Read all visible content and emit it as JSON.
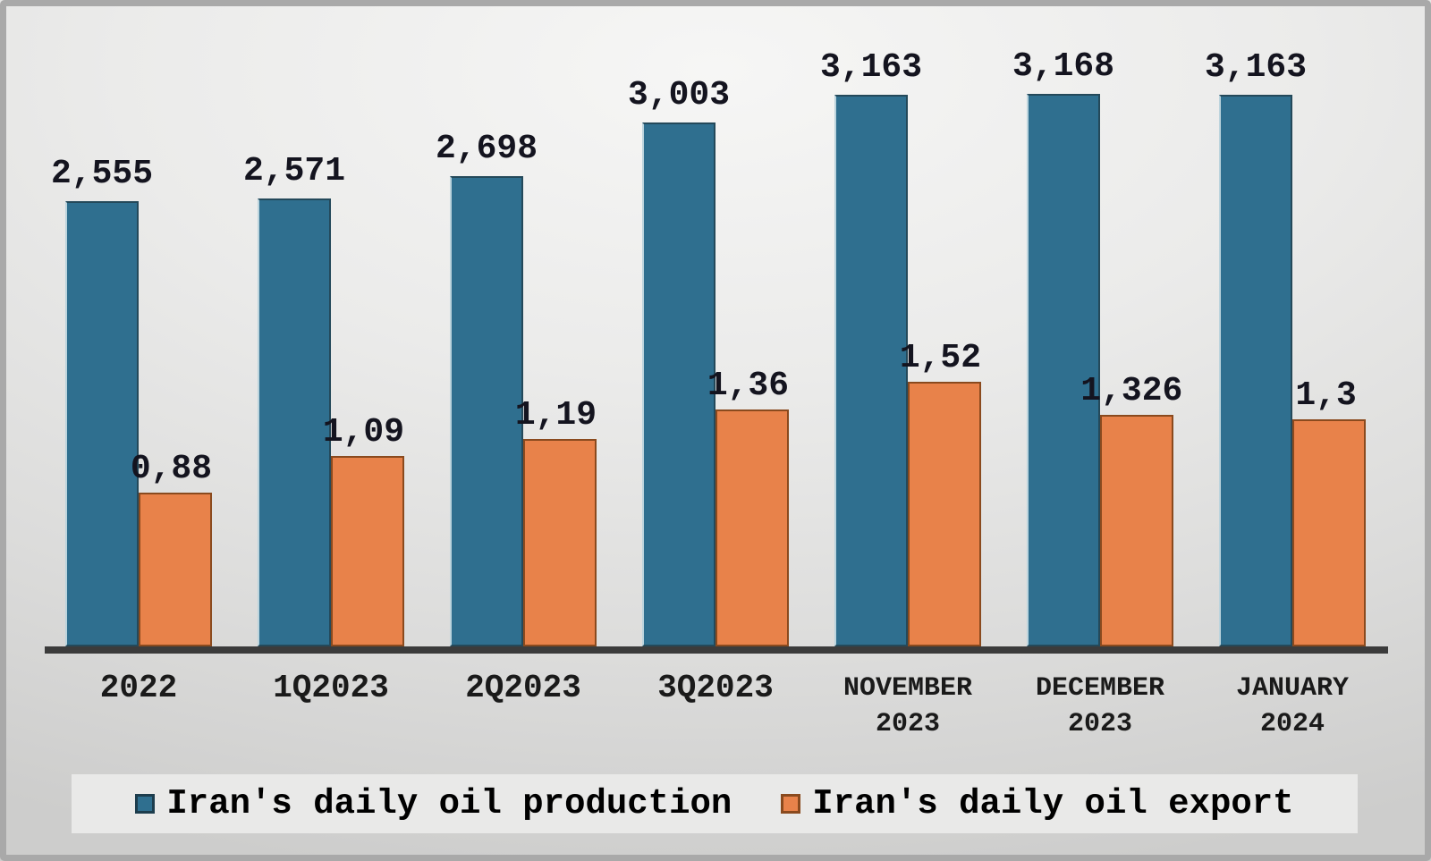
{
  "chart_data": {
    "type": "bar",
    "title": "",
    "xlabel": "",
    "ylabel": "",
    "grid": false,
    "legend_position": "bottom",
    "axes_visible": "x-only",
    "y_axis_implied_max": 3200,
    "categories": [
      "2022",
      "1Q2023",
      "2Q2023",
      "3Q2023",
      "NOVEMBER 2023",
      "DECEMBER 2023",
      "JANUARY 2024"
    ],
    "categories_lines": [
      [
        "2022"
      ],
      [
        "1Q2023"
      ],
      [
        "2Q2023"
      ],
      [
        "3Q2023"
      ],
      [
        "NOVEMBER",
        "2023"
      ],
      [
        "DECEMBER",
        "2023"
      ],
      [
        "JANUARY",
        "2024"
      ]
    ],
    "series": [
      {
        "name": "Iran's daily oil production",
        "color": "#2F6F8F",
        "values": [
          2555,
          2571,
          2698,
          3003,
          3163,
          3168,
          3163
        ],
        "labels": [
          "2,555",
          "2,571",
          "2,698",
          "3,003",
          "3,163",
          "3,168",
          "3,163"
        ],
        "plot_values": [
          2555,
          2571,
          2698,
          3003,
          3163,
          3168,
          3163
        ]
      },
      {
        "name": "Iran's daily oil export",
        "color": "#E8824A",
        "values": [
          0.88,
          1.09,
          1.19,
          1.36,
          1.52,
          1.326,
          1.3
        ],
        "labels": [
          "0,88",
          "1,09",
          "1,19",
          "1,36",
          "1,52",
          "1,326",
          "1,3"
        ],
        "plot_values": [
          880,
          1090,
          1190,
          1360,
          1520,
          1326,
          1300
        ]
      }
    ],
    "colors": {
      "production_bar": "#2F6F8F",
      "export_bar": "#E8824A",
      "axis_line": "#3b3b3b",
      "label_text": "#14141f",
      "legend_background": "#e9e9e8"
    }
  }
}
